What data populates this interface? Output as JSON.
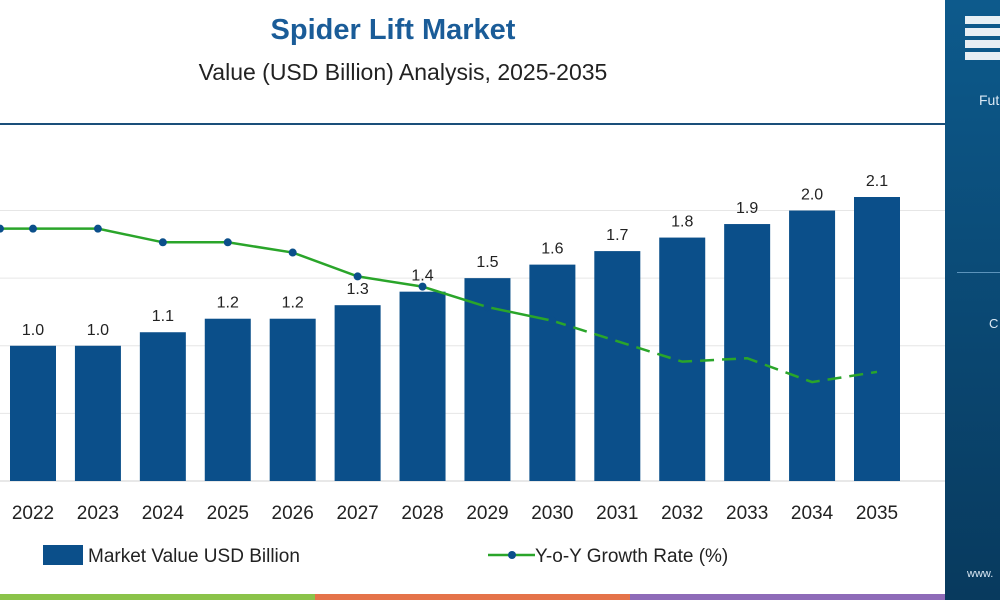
{
  "chart_data": {
    "type": "bar",
    "title": "Spider Lift Market",
    "subtitle": "Value (USD Billion) Analysis, 2025-2035",
    "categories": [
      "2022",
      "2023",
      "2024",
      "2025",
      "2026",
      "2027",
      "2028",
      "2029",
      "2030",
      "2031",
      "2032",
      "2033",
      "2034",
      "2035"
    ],
    "series": [
      {
        "name": "Market Value USD Billion",
        "type": "bar",
        "values": [
          1.0,
          1.0,
          1.1,
          1.2,
          1.2,
          1.3,
          1.4,
          1.5,
          1.6,
          1.7,
          1.8,
          1.9,
          2.0,
          2.1
        ],
        "data_labels": [
          "1.0",
          "1.0",
          "1.1",
          "1.2",
          "1.2",
          "1.3",
          "1.4",
          "1.5",
          "1.6",
          "1.7",
          "1.8",
          "1.9",
          "2.0",
          "2.1"
        ]
      },
      {
        "name": "Y-o-Y Growth Rate (%)",
        "type": "line",
        "values": [
          7.4,
          7.4,
          7.0,
          7.0,
          6.7,
          6.0,
          5.7,
          5.1,
          4.7,
          4.1,
          3.5,
          3.6,
          2.9,
          3.2
        ]
      }
    ],
    "ylim": [
      0,
      2.4
    ],
    "growth_ylim": [
      0,
      10
    ],
    "legend_position": "bottom",
    "grid": true,
    "colors": {
      "bar": "#0b4f8a",
      "line": "#2aa52a",
      "title": "#1a5c98",
      "subtitle": "#222222",
      "axis_text": "#222222"
    }
  },
  "footer_band_colors": [
    "#8bc34a",
    "#e5734a",
    "#8e6bb8"
  ],
  "side_panel": {
    "logo_text": "Futu",
    "snippet_1": "C",
    "snippet_2": "www.",
    "bg_color": "#0a4670"
  }
}
